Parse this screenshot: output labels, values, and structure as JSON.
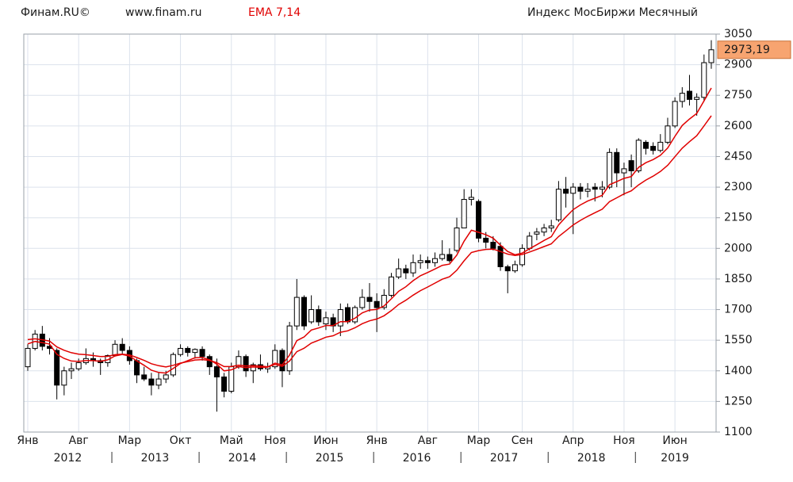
{
  "chart_data": {
    "type": "candlestick",
    "source": "Финам.RU©",
    "url": "www.finam.ru",
    "indicator": "EMA 7,14",
    "title": "Индекс МосБиржи Месячный",
    "x": [
      "2012-01",
      "2012-02",
      "2012-03",
      "2012-04",
      "2012-05",
      "2012-06",
      "2012-07",
      "2012-08",
      "2012-09",
      "2012-10",
      "2012-11",
      "2012-12",
      "2013-01",
      "2013-02",
      "2013-03",
      "2013-04",
      "2013-05",
      "2013-06",
      "2013-07",
      "2013-08",
      "2013-09",
      "2013-10",
      "2013-11",
      "2013-12",
      "2014-01",
      "2014-02",
      "2014-03",
      "2014-04",
      "2014-05",
      "2014-06",
      "2014-07",
      "2014-08",
      "2014-09",
      "2014-10",
      "2014-11",
      "2014-12",
      "2015-01",
      "2015-02",
      "2015-03",
      "2015-04",
      "2015-05",
      "2015-06",
      "2015-07",
      "2015-08",
      "2015-09",
      "2015-10",
      "2015-11",
      "2015-12",
      "2016-01",
      "2016-02",
      "2016-03",
      "2016-04",
      "2016-05",
      "2016-06",
      "2016-07",
      "2016-08",
      "2016-09",
      "2016-10",
      "2016-11",
      "2016-12",
      "2017-01",
      "2017-02",
      "2017-03",
      "2017-04",
      "2017-05",
      "2017-06",
      "2017-07",
      "2017-08",
      "2017-09",
      "2017-10",
      "2017-11",
      "2017-12",
      "2018-01",
      "2018-02",
      "2018-03",
      "2018-04",
      "2018-05",
      "2018-06",
      "2018-07",
      "2018-08",
      "2018-09",
      "2018-10",
      "2018-11",
      "2018-12",
      "2019-01",
      "2019-02",
      "2019-03",
      "2019-04",
      "2019-05",
      "2019-06",
      "2019-07",
      "2019-08",
      "2019-09",
      "2019-10",
      "2019-11"
    ],
    "open": [
      1420,
      1510,
      1580,
      1520,
      1500,
      1330,
      1400,
      1410,
      1440,
      1460,
      1450,
      1440,
      1475,
      1530,
      1500,
      1450,
      1380,
      1360,
      1330,
      1360,
      1380,
      1480,
      1510,
      1490,
      1505,
      1470,
      1420,
      1370,
      1300,
      1420,
      1470,
      1400,
      1430,
      1410,
      1420,
      1500,
      1400,
      1620,
      1760,
      1640,
      1700,
      1630,
      1660,
      1620,
      1710,
      1640,
      1710,
      1760,
      1740,
      1710,
      1770,
      1860,
      1900,
      1880,
      1930,
      1940,
      1930,
      1950,
      1970,
      1990,
      2100,
      2240,
      2230,
      2050,
      2030,
      2010,
      1910,
      1890,
      1920,
      2000,
      2070,
      2080,
      2100,
      2140,
      2290,
      2270,
      2300,
      2280,
      2300,
      2290,
      2300,
      2470,
      2370,
      2430,
      2380,
      2520,
      2500,
      2480,
      2520,
      2600,
      2720,
      2770,
      2730,
      2740,
      2910
    ],
    "high": [
      1530,
      1600,
      1620,
      1560,
      1510,
      1420,
      1440,
      1460,
      1510,
      1490,
      1460,
      1480,
      1550,
      1560,
      1520,
      1460,
      1420,
      1390,
      1390,
      1400,
      1490,
      1530,
      1520,
      1510,
      1520,
      1480,
      1460,
      1390,
      1440,
      1500,
      1480,
      1440,
      1480,
      1440,
      1530,
      1510,
      1640,
      1850,
      1770,
      1770,
      1720,
      1690,
      1680,
      1730,
      1730,
      1720,
      1800,
      1830,
      1780,
      1800,
      1880,
      1950,
      1920,
      1970,
      1970,
      1960,
      1980,
      2040,
      2000,
      2150,
      2290,
      2290,
      2240,
      2080,
      2060,
      2030,
      1920,
      1940,
      2020,
      2080,
      2100,
      2120,
      2140,
      2330,
      2350,
      2320,
      2320,
      2320,
      2320,
      2330,
      2490,
      2490,
      2420,
      2460,
      2540,
      2530,
      2520,
      2560,
      2640,
      2740,
      2790,
      2850,
      2760,
      2950,
      3020
    ],
    "low": [
      1400,
      1500,
      1500,
      1480,
      1260,
      1280,
      1360,
      1400,
      1430,
      1420,
      1380,
      1420,
      1470,
      1480,
      1430,
      1340,
      1350,
      1280,
      1310,
      1340,
      1370,
      1470,
      1470,
      1460,
      1450,
      1380,
      1200,
      1270,
      1290,
      1410,
      1370,
      1340,
      1400,
      1390,
      1410,
      1320,
      1380,
      1600,
      1600,
      1630,
      1620,
      1600,
      1590,
      1570,
      1630,
      1630,
      1700,
      1690,
      1590,
      1700,
      1760,
      1850,
      1850,
      1860,
      1900,
      1900,
      1910,
      1940,
      1930,
      1980,
      2100,
      2210,
      2030,
      2000,
      1990,
      1890,
      1780,
      1880,
      1910,
      1990,
      2040,
      2060,
      2080,
      2130,
      2200,
      2070,
      2240,
      2250,
      2230,
      2250,
      2290,
      2300,
      2260,
      2300,
      2370,
      2460,
      2460,
      2470,
      2510,
      2590,
      2690,
      2700,
      2650,
      2720,
      2880
    ],
    "close": [
      1510,
      1580,
      1520,
      1510,
      1330,
      1400,
      1410,
      1440,
      1460,
      1450,
      1440,
      1475,
      1530,
      1500,
      1450,
      1380,
      1360,
      1330,
      1360,
      1380,
      1480,
      1510,
      1490,
      1505,
      1470,
      1420,
      1370,
      1300,
      1420,
      1470,
      1400,
      1430,
      1410,
      1420,
      1500,
      1400,
      1620,
      1760,
      1620,
      1700,
      1640,
      1660,
      1620,
      1700,
      1640,
      1710,
      1760,
      1740,
      1710,
      1770,
      1860,
      1900,
      1880,
      1930,
      1940,
      1930,
      1950,
      1970,
      1940,
      2100,
      2240,
      2250,
      2050,
      2030,
      2000,
      1910,
      1890,
      1920,
      2000,
      2060,
      2080,
      2100,
      2110,
      2290,
      2270,
      2300,
      2280,
      2290,
      2290,
      2300,
      2470,
      2370,
      2390,
      2380,
      2530,
      2490,
      2480,
      2520,
      2600,
      2720,
      2760,
      2730,
      2740,
      2910,
      2973.19
    ],
    "up_color": "#ffffff",
    "down_color": "#000000",
    "ema": [
      {
        "color": "#e00000",
        "values": [
          1532,
          1544,
          1538,
          1531,
          1481,
          1461,
          1448,
          1446,
          1450,
          1450,
          1447,
          1454,
          1473,
          1480,
          1472,
          1449,
          1427,
          1403,
          1392,
          1389,
          1412,
          1436,
          1450,
          1464,
          1465,
          1454,
          1433,
          1400,
          1405,
          1421,
          1416,
          1419,
          1417,
          1418,
          1438,
          1429,
          1477,
          1548,
          1566,
          1600,
          1610,
          1622,
          1622,
          1641,
          1641,
          1658,
          1684,
          1698,
          1701,
          1718,
          1753,
          1790,
          1812,
          1842,
          1866,
          1882,
          1899,
          1917,
          1923,
          1967,
          2035,
          2089,
          2079,
          2067,
          2050,
          2016,
          1985,
          1969,
          1977,
          1998,
          2018,
          2039,
          2057,
          2115,
          2154,
          2190,
          2213,
          2232,
          2246,
          2260,
          2312,
          2327,
          2343,
          2352,
          2397,
          2420,
          2435,
          2456,
          2492,
          2549,
          2602,
          2634,
          2661,
          2723,
          2786
        ]
      },
      {
        "color": "#e00000",
        "values": [
          1553,
          1557,
          1552,
          1546,
          1517,
          1501,
          1489,
          1482,
          1479,
          1475,
          1470,
          1471,
          1479,
          1482,
          1478,
          1465,
          1451,
          1435,
          1425,
          1419,
          1427,
          1438,
          1445,
          1453,
          1455,
          1451,
          1440,
          1421,
          1421,
          1428,
          1424,
          1425,
          1423,
          1420,
          1431,
          1422,
          1448,
          1494,
          1511,
          1536,
          1550,
          1565,
          1572,
          1589,
          1596,
          1611,
          1631,
          1645,
          1654,
          1670,
          1695,
          1725,
          1746,
          1771,
          1793,
          1811,
          1830,
          1849,
          1861,
          1893,
          1939,
          1980,
          1989,
          1995,
          1996,
          1985,
          1972,
          1965,
          1970,
          1982,
          1995,
          2009,
          2022,
          2058,
          2086,
          2115,
          2137,
          2157,
          2175,
          2192,
          2229,
          2248,
          2267,
          2282,
          2311,
          2335,
          2354,
          2377,
          2407,
          2449,
          2491,
          2523,
          2552,
          2600,
          2650
        ]
      }
    ],
    "ylim": [
      1100,
      3050
    ],
    "yticks": [
      1100,
      1250,
      1400,
      1550,
      1700,
      1850,
      2000,
      2150,
      2300,
      2450,
      2600,
      2750,
      2900,
      3050
    ],
    "xticks": [
      {
        "value": "2012-01",
        "label": "Янв"
      },
      {
        "value": "2012-08",
        "label": "Авг"
      },
      {
        "value": "2013-03",
        "label": "Мар"
      },
      {
        "value": "2013-10",
        "label": "Окт"
      },
      {
        "value": "2014-05",
        "label": "Май"
      },
      {
        "value": "2014-11",
        "label": "Ноя"
      },
      {
        "value": "2015-06",
        "label": "Июн"
      },
      {
        "value": "2016-01",
        "label": "Янв"
      },
      {
        "value": "2016-08",
        "label": "Авг"
      },
      {
        "value": "2017-03",
        "label": "Мар"
      },
      {
        "value": "2017-09",
        "label": "Сен"
      },
      {
        "value": "2018-04",
        "label": "Апр"
      },
      {
        "value": "2018-11",
        "label": "Ноя"
      },
      {
        "value": "2019-06",
        "label": "Июн"
      }
    ],
    "years": [
      "2012",
      "2013",
      "2014",
      "2015",
      "2016",
      "2017",
      "2018",
      "2019"
    ],
    "last_label": "2973,19",
    "grid": true
  }
}
